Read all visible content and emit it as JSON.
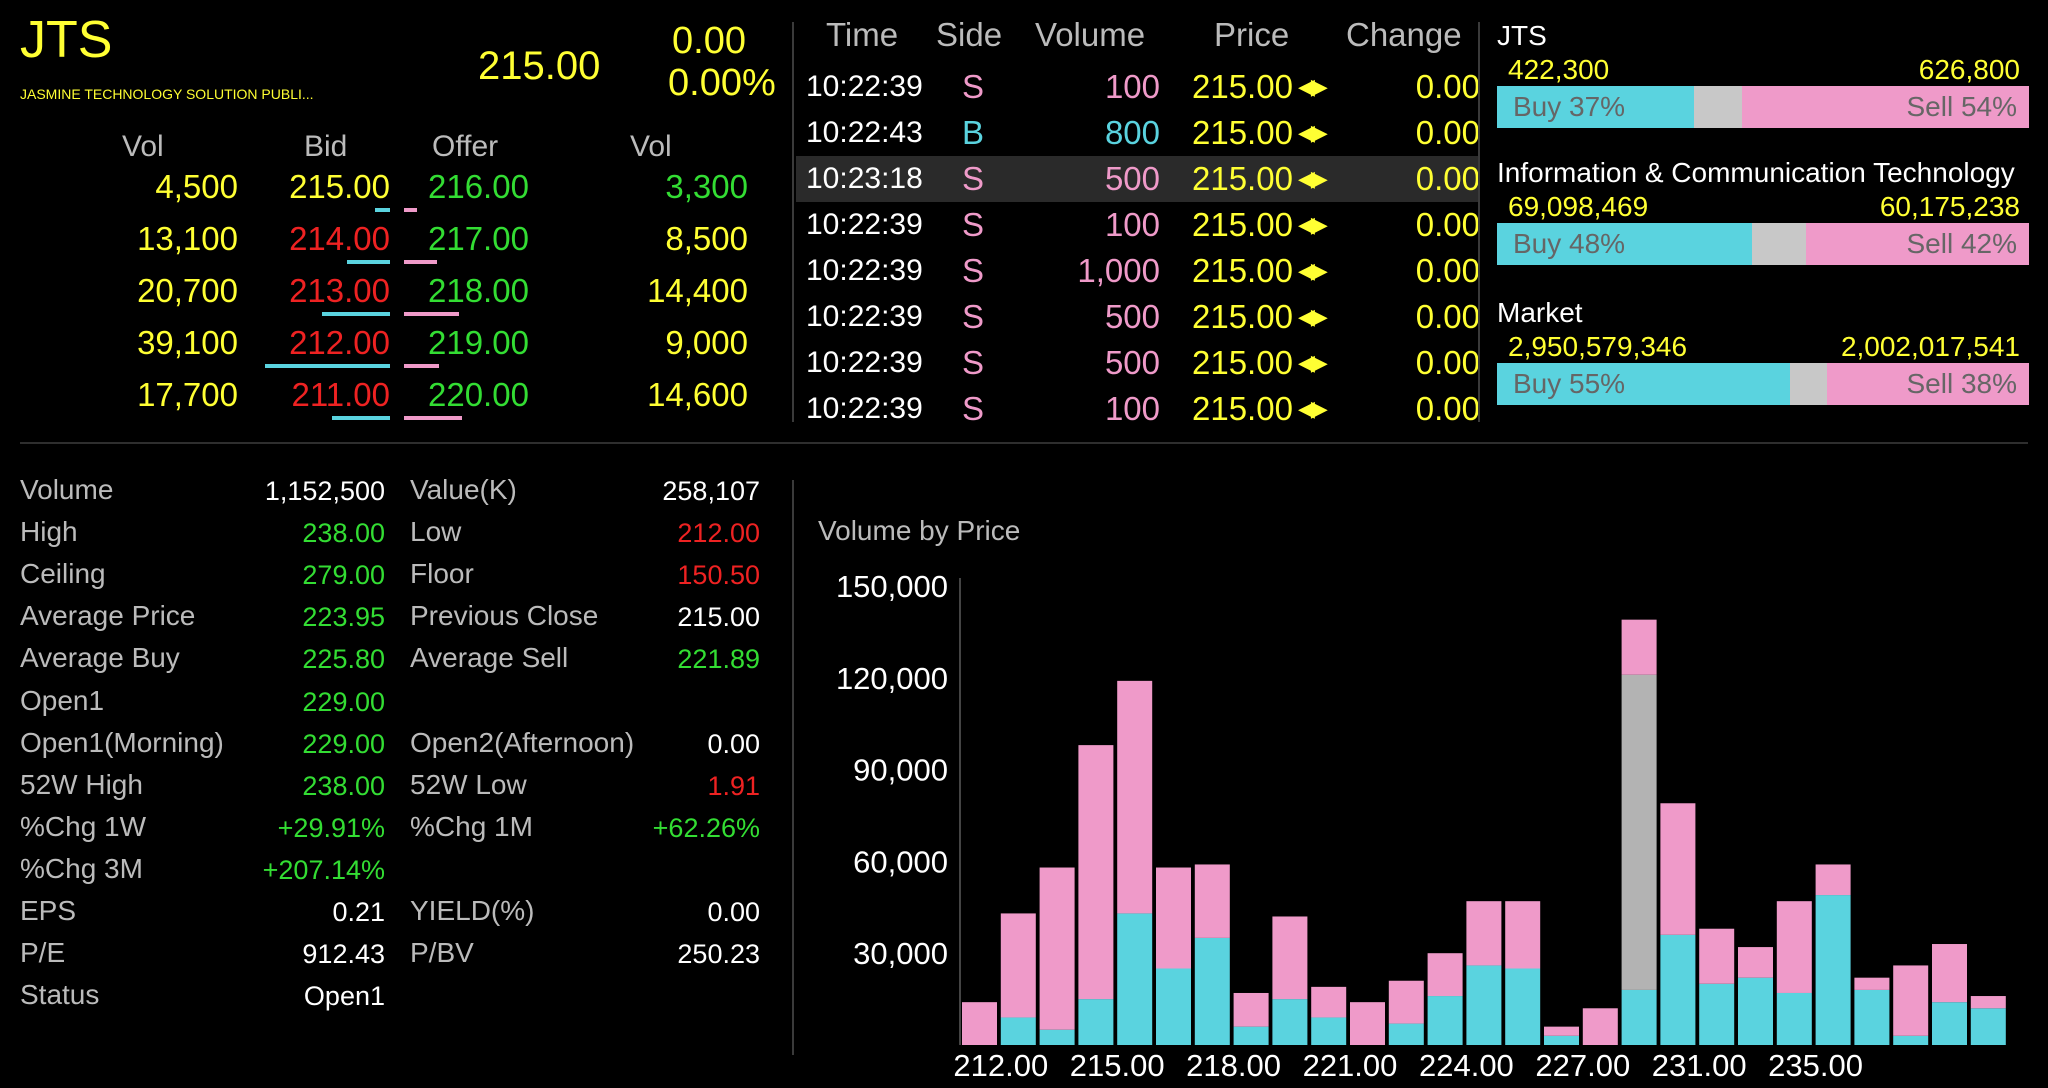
{
  "quote": {
    "symbol": "JTS",
    "name": "JASMINE TECHNOLOGY SOLUTION PUBLI...",
    "last": "215.00",
    "change": "0.00",
    "change_pct": "0.00%"
  },
  "orderbook": {
    "headers": {
      "vol_bid": "Vol",
      "bid": "Bid",
      "offer": "Offer",
      "vol_offer": "Vol"
    },
    "rows": [
      {
        "bid_vol": "4,500",
        "bid": "215.00",
        "offer": "216.00",
        "offer_vol": "3,300",
        "bid_color": "#ffff33",
        "bid_vol_color": "#ffff33",
        "offer_vol_color": "#33dd33",
        "bid_bar": 0.06,
        "offer_bar": 0.05
      },
      {
        "bid_vol": "13,100",
        "bid": "214.00",
        "offer": "217.00",
        "offer_vol": "8,500",
        "bid_color": "#ee2222",
        "bid_vol_color": "#ffff33",
        "offer_vol_color": "#ffff33",
        "bid_bar": 0.17,
        "offer_bar": 0.13
      },
      {
        "bid_vol": "20,700",
        "bid": "213.00",
        "offer": "218.00",
        "offer_vol": "14,400",
        "bid_color": "#ee2222",
        "bid_vol_color": "#ffff33",
        "offer_vol_color": "#ffff33",
        "bid_bar": 0.27,
        "offer_bar": 0.22
      },
      {
        "bid_vol": "39,100",
        "bid": "212.00",
        "offer": "219.00",
        "offer_vol": "9,000",
        "bid_color": "#ee2222",
        "bid_vol_color": "#ffff33",
        "offer_vol_color": "#ffff33",
        "bid_bar": 0.5,
        "offer_bar": 0.14
      },
      {
        "bid_vol": "17,700",
        "bid": "211.00",
        "offer": "220.00",
        "offer_vol": "14,600",
        "bid_color": "#ee2222",
        "bid_vol_color": "#ffff33",
        "offer_vol_color": "#ffff33",
        "bid_bar": 0.23,
        "offer_bar": 0.23
      }
    ]
  },
  "ticker": {
    "headers": {
      "time": "Time",
      "side": "Side",
      "volume": "Volume",
      "price": "Price",
      "change": "Change"
    },
    "rows": [
      {
        "time": "10:22:39",
        "side": "S",
        "volume": "100",
        "price": "215.00",
        "change": "0.00"
      },
      {
        "time": "10:22:43",
        "side": "B",
        "volume": "800",
        "price": "215.00",
        "change": "0.00"
      },
      {
        "time": "10:23:18",
        "side": "S",
        "volume": "500",
        "price": "215.00",
        "change": "0.00"
      },
      {
        "time": "10:22:39",
        "side": "S",
        "volume": "100",
        "price": "215.00",
        "change": "0.00"
      },
      {
        "time": "10:22:39",
        "side": "S",
        "volume": "1,000",
        "price": "215.00",
        "change": "0.00"
      },
      {
        "time": "10:22:39",
        "side": "S",
        "volume": "500",
        "price": "215.00",
        "change": "0.00"
      },
      {
        "time": "10:22:39",
        "side": "S",
        "volume": "500",
        "price": "215.00",
        "change": "0.00"
      },
      {
        "time": "10:22:39",
        "side": "S",
        "volume": "100",
        "price": "215.00",
        "change": "0.00"
      }
    ]
  },
  "pressure": [
    {
      "title": "JTS",
      "buy_total": "422,300",
      "sell_total": "626,800",
      "buy_label": "Buy 37%",
      "sell_label": "Sell 54%",
      "buy_pct": 37,
      "sell_pct": 54
    },
    {
      "title": "Information & Communication Technology",
      "buy_total": "69,098,469",
      "sell_total": "60,175,238",
      "buy_label": "Buy 48%",
      "sell_label": "Sell 42%",
      "buy_pct": 48,
      "sell_pct": 42
    },
    {
      "title": "Market",
      "buy_total": "2,950,579,346",
      "sell_total": "2,002,017,541",
      "buy_label": "Buy 55%",
      "sell_label": "Sell 38%",
      "buy_pct": 55,
      "sell_pct": 38
    }
  ],
  "stats_left": [
    {
      "label": "Volume",
      "value": "1,152,500",
      "color": "#ffffff"
    },
    {
      "label": "High",
      "value": "238.00",
      "color": "#33dd33"
    },
    {
      "label": "Ceiling",
      "value": "279.00",
      "color": "#33dd33"
    },
    {
      "label": "Average Price",
      "value": "223.95",
      "color": "#33dd33"
    },
    {
      "label": "Average Buy",
      "value": "225.80",
      "color": "#33dd33"
    },
    {
      "label": "Open1",
      "value": "229.00",
      "color": "#33dd33"
    },
    {
      "label": "Open1(Morning)",
      "value": "229.00",
      "color": "#33dd33"
    },
    {
      "label": "52W High",
      "value": "238.00",
      "color": "#33dd33"
    },
    {
      "label": "%Chg 1W",
      "value": "+29.91%",
      "color": "#33dd33"
    },
    {
      "label": "%Chg 3M",
      "value": "+207.14%",
      "color": "#33dd33"
    },
    {
      "label": "EPS",
      "value": "0.21",
      "color": "#ffffff"
    },
    {
      "label": "P/E",
      "value": "912.43",
      "color": "#ffffff"
    },
    {
      "label": "Status",
      "value": "Open1",
      "color": "#ffffff"
    }
  ],
  "stats_right": [
    {
      "label": "Value(K)",
      "value": "258,107",
      "color": "#ffffff",
      "row": 0
    },
    {
      "label": "Low",
      "value": "212.00",
      "color": "#ee2222",
      "row": 1
    },
    {
      "label": "Floor",
      "value": "150.50",
      "color": "#ee2222",
      "row": 2
    },
    {
      "label": "Previous Close",
      "value": "215.00",
      "color": "#ffffff",
      "row": 3
    },
    {
      "label": "Average Sell",
      "value": "221.89",
      "color": "#33dd33",
      "row": 4
    },
    {
      "label": "Open2(Afternoon)",
      "value": "0.00",
      "color": "#ffffff",
      "row": 6
    },
    {
      "label": "52W Low",
      "value": "1.91",
      "color": "#ee2222",
      "row": 7
    },
    {
      "label": "%Chg 1M",
      "value": "+62.26%",
      "color": "#33dd33",
      "row": 8
    },
    {
      "label": "YIELD(%)",
      "value": "0.00",
      "color": "#ffffff",
      "row": 10
    },
    {
      "label": "P/BV",
      "value": "250.23",
      "color": "#ffffff",
      "row": 11
    }
  ],
  "colors": {
    "buy": "#5ad3df",
    "sell": "#ef9ac9",
    "open": "#b3b3b3",
    "up": "#33dd33",
    "down": "#ee2222",
    "unchanged": "#ffff33"
  },
  "chart_data": {
    "type": "bar",
    "title": "Volume by Price",
    "x": [
      211,
      212,
      213,
      214,
      215,
      216,
      217,
      218,
      219,
      220,
      221,
      222,
      223,
      224,
      225,
      226,
      227,
      228,
      229,
      230,
      231,
      232,
      233,
      234,
      235,
      236,
      237
    ],
    "x_tick_labels": [
      "212.00",
      "215.00",
      "218.00",
      "221.00",
      "224.00",
      "227.00",
      "231.00",
      "235.00"
    ],
    "x_tick_values": [
      212.5,
      215.5,
      218.5,
      221.5,
      224.5,
      227.5,
      230.5,
      233.5
    ],
    "ylim": [
      0,
      150000
    ],
    "y_ticks": [
      30000,
      60000,
      90000,
      120000,
      150000
    ],
    "y_tick_labels": [
      "30,000",
      "60,000",
      "90,000",
      "120,000",
      "150,000"
    ],
    "series": [
      {
        "name": "Buy",
        "values": [
          0,
          9000,
          5000,
          15000,
          43000,
          25000,
          35000,
          6000,
          15000,
          9000,
          0,
          7000,
          16000,
          26000,
          25000,
          3000,
          0,
          18000,
          36000,
          20000,
          22000,
          17000,
          49000,
          18000,
          3000,
          14000,
          12000
        ]
      },
      {
        "name": "Sell",
        "values": [
          14000,
          34000,
          53000,
          83000,
          76000,
          33000,
          24000,
          11000,
          27000,
          10000,
          14000,
          14000,
          14000,
          21000,
          22000,
          3000,
          12000,
          18000,
          43000,
          18000,
          10000,
          30000,
          10000,
          4000,
          23000,
          19000,
          4000
        ]
      },
      {
        "name": "Open",
        "values": [
          0,
          0,
          0,
          0,
          0,
          0,
          0,
          0,
          0,
          0,
          0,
          0,
          0,
          0,
          0,
          0,
          0,
          103000,
          0,
          0,
          0,
          0,
          0,
          0,
          0,
          0,
          0
        ]
      }
    ]
  }
}
